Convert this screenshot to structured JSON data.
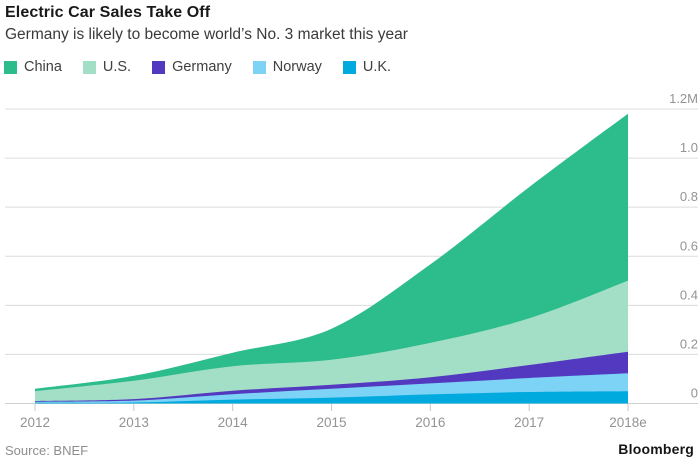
{
  "header": {
    "title": "Electric Car Sales Take Off",
    "subtitle": "Germany is likely to become world’s No. 3 market this year"
  },
  "legend": [
    {
      "label": "China",
      "color": "#2dbc8c"
    },
    {
      "label": "U.S.",
      "color": "#a3dfc6"
    },
    {
      "label": "Germany",
      "color": "#5339bf"
    },
    {
      "label": "Norway",
      "color": "#7cd3f5"
    },
    {
      "label": "U.K.",
      "color": "#00a9de"
    }
  ],
  "chart_data": {
    "type": "area",
    "stacked": true,
    "title": "Electric Car Sales Take Off",
    "subtitle": "Germany is likely to become world’s No. 3 market this year",
    "unit": "millions of vehicles",
    "categories": [
      "2012",
      "2013",
      "2014",
      "2015",
      "2016",
      "2017",
      "2018e"
    ],
    "series": [
      {
        "name": "China",
        "color": "#2dbc8c",
        "values": [
          0.01,
          0.02,
          0.055,
          0.127,
          0.32,
          0.535,
          0.68
        ]
      },
      {
        "name": "U.S.",
        "color": "#a3dfc6",
        "values": [
          0.04,
          0.075,
          0.1,
          0.102,
          0.14,
          0.19,
          0.29
        ]
      },
      {
        "name": "Germany",
        "color": "#5339bf",
        "values": [
          0.003,
          0.006,
          0.014,
          0.016,
          0.025,
          0.053,
          0.088
        ]
      },
      {
        "name": "Norway",
        "color": "#7cd3f5",
        "values": [
          0.004,
          0.008,
          0.022,
          0.036,
          0.045,
          0.057,
          0.073
        ]
      },
      {
        "name": "U.K.",
        "color": "#00a9de",
        "values": [
          0.003,
          0.004,
          0.016,
          0.024,
          0.037,
          0.047,
          0.05
        ]
      }
    ],
    "stack_order_bottom_to_top": [
      "U.K.",
      "Norway",
      "Germany",
      "U.S.",
      "China"
    ],
    "yticks": [
      {
        "value": 0.0,
        "label": "0"
      },
      {
        "value": 0.2,
        "label": "0.2"
      },
      {
        "value": 0.4,
        "label": "0.4"
      },
      {
        "value": 0.6,
        "label": "0.6"
      },
      {
        "value": 0.8,
        "label": "0.8"
      },
      {
        "value": 1.0,
        "label": "1.0"
      },
      {
        "value": 1.2,
        "label": "1.2M"
      }
    ],
    "ylim": [
      0,
      1.2
    ],
    "grid": true,
    "legend_position": "top",
    "axis_colors": {
      "grid": "#dcdcdc",
      "tick": "#c8c8c8",
      "tick_label": "#939393"
    }
  },
  "footer": {
    "source": "Source: BNEF",
    "brand": "Bloomberg"
  }
}
